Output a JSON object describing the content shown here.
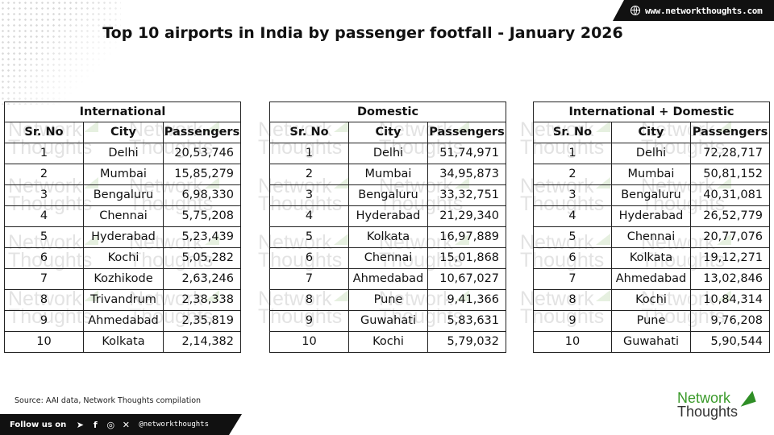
{
  "website": "www.networkthoughts.com",
  "title": "Top 10 airports in India by passenger footfall - January 2026",
  "columns": {
    "sr": "Sr. No",
    "city": "City",
    "passengers": "Passengers"
  },
  "watermark": {
    "line1": "Network",
    "line2": "Thoughts"
  },
  "tables": [
    {
      "heading": "International",
      "rows": [
        [
          "1",
          "Delhi",
          "20,53,746"
        ],
        [
          "2",
          "Mumbai",
          "15,85,279"
        ],
        [
          "3",
          "Bengaluru",
          "6,98,330"
        ],
        [
          "4",
          "Chennai",
          "5,75,208"
        ],
        [
          "5",
          "Hyderabad",
          "5,23,439"
        ],
        [
          "6",
          "Kochi",
          "5,05,282"
        ],
        [
          "7",
          "Kozhikode",
          "2,63,246"
        ],
        [
          "8",
          "Trivandrum",
          "2,38,338"
        ],
        [
          "9",
          "Ahmedabad",
          "2,35,819"
        ],
        [
          "10",
          "Kolkata",
          "2,14,382"
        ]
      ]
    },
    {
      "heading": "Domestic",
      "rows": [
        [
          "1",
          "Delhi",
          "51,74,971"
        ],
        [
          "2",
          "Mumbai",
          "34,95,873"
        ],
        [
          "3",
          "Bengaluru",
          "33,32,751"
        ],
        [
          "4",
          "Hyderabad",
          "21,29,340"
        ],
        [
          "5",
          "Kolkata",
          "16,97,889"
        ],
        [
          "6",
          "Chennai",
          "15,01,868"
        ],
        [
          "7",
          "Ahmedabad",
          "10,67,027"
        ],
        [
          "8",
          "Pune",
          "9,41,366"
        ],
        [
          "9",
          "Guwahati",
          "5,83,631"
        ],
        [
          "10",
          "Kochi",
          "5,79,032"
        ]
      ]
    },
    {
      "heading": "International + Domestic",
      "rows": [
        [
          "1",
          "Delhi",
          "72,28,717"
        ],
        [
          "2",
          "Mumbai",
          "50,81,152"
        ],
        [
          "3",
          "Bengaluru",
          "40,31,081"
        ],
        [
          "4",
          "Hyderabad",
          "26,52,779"
        ],
        [
          "5",
          "Chennai",
          "20,77,076"
        ],
        [
          "6",
          "Kolkata",
          "19,12,271"
        ],
        [
          "7",
          "Ahmedabad",
          "13,02,846"
        ],
        [
          "8",
          "Kochi",
          "10,84,314"
        ],
        [
          "9",
          "Pune",
          "9,76,208"
        ],
        [
          "10",
          "Guwahati",
          "5,90,544"
        ]
      ]
    }
  ],
  "source": "Source: AAI data, Network Thoughts compilation",
  "logo": {
    "line1": "Network",
    "line2": "Thoughts"
  },
  "social": {
    "follow_label": "Follow us on",
    "icons": [
      "telegram-icon",
      "facebook-icon",
      "instagram-icon",
      "x-icon"
    ],
    "handle": "@networkthoughts"
  }
}
